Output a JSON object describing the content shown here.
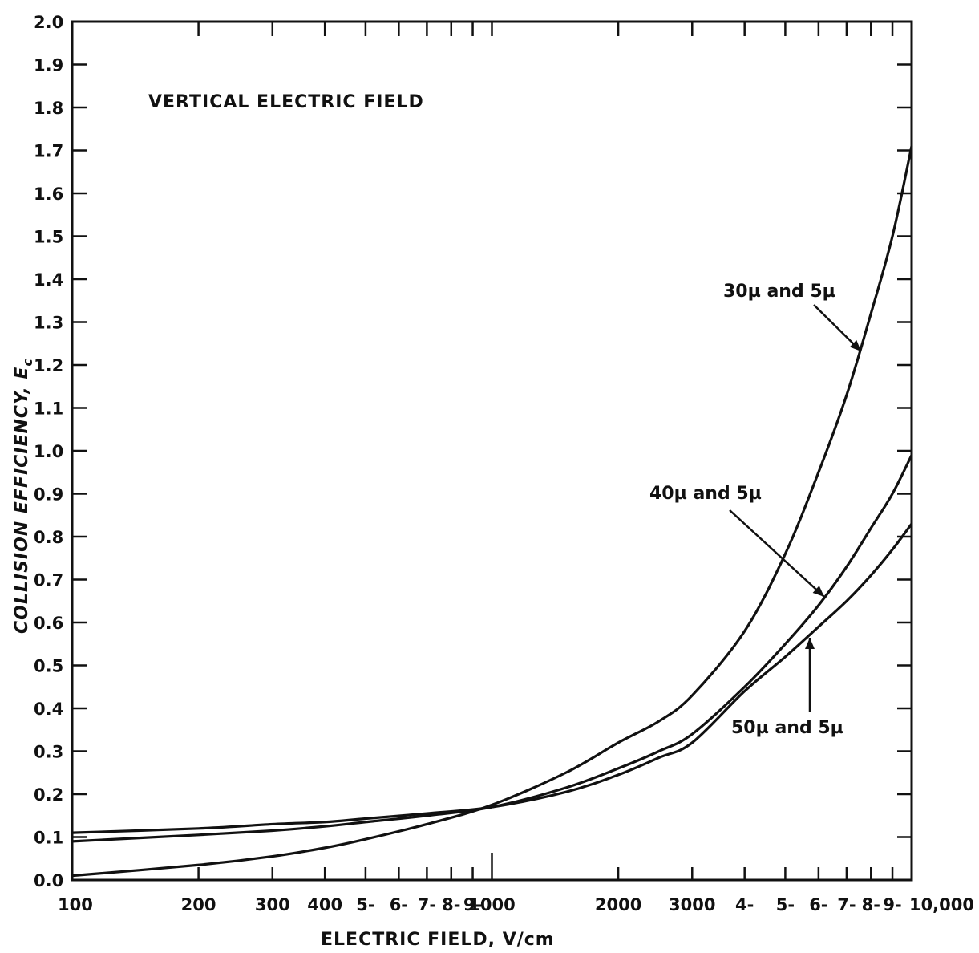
{
  "chart_data": {
    "type": "line",
    "title": "VERTICAL ELECTRIC FIELD",
    "xlabel": "ELECTRIC FIELD, V/cm",
    "ylabel": "COLLISION EFFICIENCY, E",
    "ylabel_sub": "c",
    "xscale": "log",
    "xlim": [
      100,
      10000
    ],
    "ylim": [
      0.0,
      2.0
    ],
    "grid": false,
    "x_ticks": [
      100,
      200,
      300,
      400,
      500,
      600,
      700,
      800,
      900,
      1000,
      2000,
      3000,
      4000,
      5000,
      6000,
      7000,
      8000,
      9000,
      10000
    ],
    "x_tick_labels": [
      {
        "x": 100,
        "text": "100"
      },
      {
        "x": 200,
        "text": "200"
      },
      {
        "x": 300,
        "text": "300"
      },
      {
        "x": 400,
        "text": "400"
      },
      {
        "x": 500,
        "text": "5-"
      },
      {
        "x": 600,
        "text": "6-"
      },
      {
        "x": 700,
        "text": "7-"
      },
      {
        "x": 800,
        "text": "8-"
      },
      {
        "x": 900,
        "text": "9-"
      },
      {
        "x": 1000,
        "text": "1000"
      },
      {
        "x": 2000,
        "text": "2000"
      },
      {
        "x": 3000,
        "text": "3000"
      },
      {
        "x": 4000,
        "text": "4-"
      },
      {
        "x": 5000,
        "text": "5-"
      },
      {
        "x": 6000,
        "text": "6-"
      },
      {
        "x": 7000,
        "text": "7-"
      },
      {
        "x": 8000,
        "text": "8-"
      },
      {
        "x": 9000,
        "text": "9-"
      },
      {
        "x": 10000,
        "text": "10,000"
      }
    ],
    "y_tick_labels": [
      "0.0",
      "0.1",
      "0.2",
      "0.3",
      "0.4",
      "0.5",
      "0.6",
      "0.7",
      "0.8",
      "0.9",
      "1.0",
      "1.1",
      "1.2",
      "1.3",
      "1.4",
      "1.5",
      "1.6",
      "1.7",
      "1.8",
      "1.9",
      "2.0"
    ],
    "series": [
      {
        "name": "30µ and 5µ",
        "x": [
          100,
          200,
          300,
          400,
          500,
          700,
          1000,
          1500,
          2000,
          2500,
          3000,
          4000,
          5000,
          6000,
          7000,
          8000,
          9000,
          10000
        ],
        "y": [
          0.01,
          0.035,
          0.055,
          0.075,
          0.095,
          0.13,
          0.175,
          0.25,
          0.32,
          0.37,
          0.43,
          0.58,
          0.76,
          0.95,
          1.13,
          1.32,
          1.5,
          1.71
        ]
      },
      {
        "name": "40µ and 5µ",
        "x": [
          100,
          200,
          300,
          400,
          500,
          700,
          1000,
          1500,
          2000,
          2500,
          3000,
          4000,
          5000,
          6000,
          7000,
          8000,
          9000,
          10000
        ],
        "y": [
          0.09,
          0.105,
          0.115,
          0.125,
          0.135,
          0.15,
          0.17,
          0.215,
          0.26,
          0.3,
          0.34,
          0.45,
          0.55,
          0.64,
          0.73,
          0.82,
          0.9,
          0.99
        ]
      },
      {
        "name": "50µ and 5µ",
        "x": [
          100,
          200,
          300,
          400,
          500,
          700,
          1000,
          1500,
          2000,
          2500,
          3000,
          4000,
          5000,
          6000,
          7000,
          8000,
          9000,
          10000
        ],
        "y": [
          0.11,
          0.12,
          0.13,
          0.135,
          0.143,
          0.155,
          0.17,
          0.205,
          0.245,
          0.285,
          0.32,
          0.44,
          0.52,
          0.59,
          0.65,
          0.71,
          0.77,
          0.83
        ]
      }
    ],
    "annotations": [
      {
        "text": "30µ and 5µ",
        "series": 0
      },
      {
        "text": "40µ and 5µ",
        "series": 1
      },
      {
        "text": "50µ and 5µ",
        "series": 2
      }
    ]
  }
}
